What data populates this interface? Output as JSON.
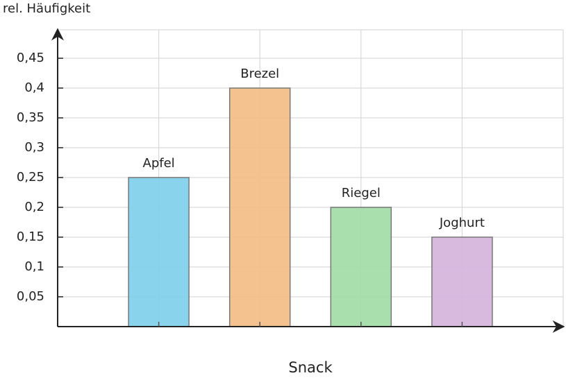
{
  "chart_data": {
    "type": "bar",
    "y_label": "rel. Häufigkeit",
    "x_label": "Snack",
    "categories": [
      "Apfel",
      "Brezel",
      "Riegel",
      "Joghurt"
    ],
    "values": [
      0.25,
      0.4,
      0.2,
      0.15
    ],
    "colors": [
      "#7fcfea",
      "#f3bd85",
      "#a2dca5",
      "#d6b4dc"
    ],
    "ylim": [
      0,
      0.5
    ],
    "yticks": [
      {
        "value": 0.05,
        "label": "0,05"
      },
      {
        "value": 0.1,
        "label": "0,1"
      },
      {
        "value": 0.15,
        "label": "0,15"
      },
      {
        "value": 0.2,
        "label": "0,2"
      },
      {
        "value": 0.25,
        "label": "0,25"
      },
      {
        "value": 0.3,
        "label": "0,3"
      },
      {
        "value": 0.35,
        "label": "0,35"
      },
      {
        "value": 0.4,
        "label": "0,4"
      },
      {
        "value": 0.45,
        "label": "0,45"
      }
    ],
    "grid": true
  }
}
